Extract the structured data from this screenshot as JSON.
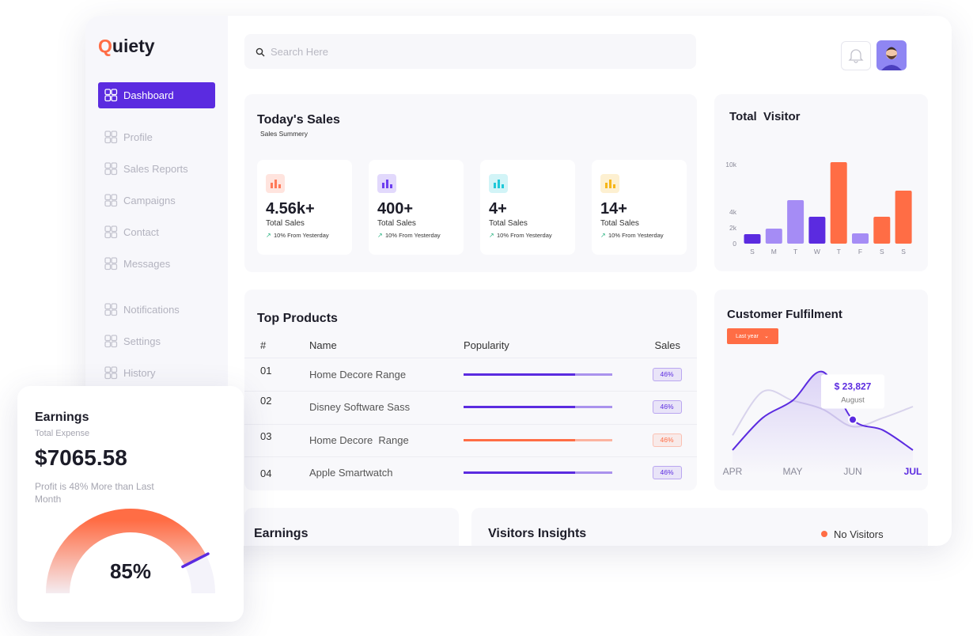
{
  "logo": "Quiety",
  "nav": {
    "items": [
      "Dashboard",
      "Profile",
      "Sales Reports",
      "Campaigns",
      "Contact",
      "Messages",
      "Notifications",
      "Settings",
      "History"
    ],
    "active": 0
  },
  "search": {
    "placeholder": "Search Here"
  },
  "todays_sales": {
    "title": "Today's Sales",
    "subtitle": "Sales Summery",
    "cards": [
      {
        "value": "4.56k+",
        "label": "Total Sales",
        "change": "10% From Yesterday",
        "color": "#ff7a59"
      },
      {
        "value": "400+",
        "label": "Total Sales",
        "change": "10% From Yesterday",
        "color": "#6d3ff0"
      },
      {
        "value": "4+",
        "label": "Total Sales",
        "change": "10% From Yesterday",
        "color": "#1fc8d8"
      },
      {
        "value": "14+",
        "label": "Total Sales",
        "change": "10% From Yesterday",
        "color": "#f6b619"
      }
    ]
  },
  "top_products": {
    "title": "Top Products",
    "columns": [
      "#",
      "Name",
      "Popularity",
      "Sales"
    ],
    "rows": [
      {
        "id": "01",
        "name": "Home Decore Range",
        "popularity": 75,
        "sales": "46%",
        "color": "#5b2be0"
      },
      {
        "id": "02",
        "name": "Disney Software Sass",
        "popularity": 75,
        "sales": "46%",
        "color": "#5b2be0"
      },
      {
        "id": "03",
        "name": "Home Decore  Range",
        "popularity": 75,
        "sales": "46%",
        "color": "#ff6d45"
      },
      {
        "id": "04",
        "name": "Apple Smartwatch",
        "popularity": 75,
        "sales": "46%",
        "color": "#5b2be0"
      }
    ]
  },
  "chart_data": [
    {
      "type": "bar",
      "title": "Total  Visitor",
      "categories": [
        "S",
        "M",
        "T",
        "W",
        "T",
        "F",
        "S",
        "S"
      ],
      "values": [
        1200,
        1900,
        5500,
        3400,
        10300,
        1300,
        3400,
        6700
      ],
      "colors": [
        "#5b2be0",
        "#a58cf5",
        "#a58cf5",
        "#5b2be0",
        "#ff6d45",
        "#a58cf5",
        "#ff6d45",
        "#ff6d45"
      ],
      "ylim": [
        0,
        10500
      ],
      "yticks": [
        0,
        {
          "value": 2000,
          "label": "2k"
        },
        {
          "value": 4000,
          "label": "4k"
        },
        {
          "value": 10000,
          "label": "10k"
        }
      ]
    },
    {
      "type": "line",
      "title": "Customer Fulfilment",
      "button": "Last year",
      "categories": [
        "APR",
        null,
        "MAY",
        null,
        "JUN",
        null,
        "JUL"
      ],
      "series": [
        {
          "color": "#5b2be0",
          "values": [
            10,
            47,
            67,
            100,
            45,
            33,
            10
          ]
        },
        {
          "color": "#d8d3ec",
          "values": [
            27,
            77,
            67,
            57,
            37,
            47,
            60
          ]
        }
      ],
      "tooltip": {
        "value": "$ 23,827",
        "label": "August",
        "index": 4
      }
    },
    {
      "type": "gauge",
      "values": [
        85
      ],
      "value_labels": [
        "85%"
      ],
      "color": "#ff6d45"
    }
  ],
  "earnings_card": {
    "title": "Earnings",
    "subtitle": "Total Expense",
    "amount": "$7065.58",
    "note": "Profit is 48% More than Last Month"
  },
  "bottom": {
    "earnings_title": "Earnings",
    "visitors": {
      "title": "Visitors Insights",
      "legend": [
        {
          "name": "No Visitors",
          "color": "#ff6d45"
        }
      ]
    }
  }
}
